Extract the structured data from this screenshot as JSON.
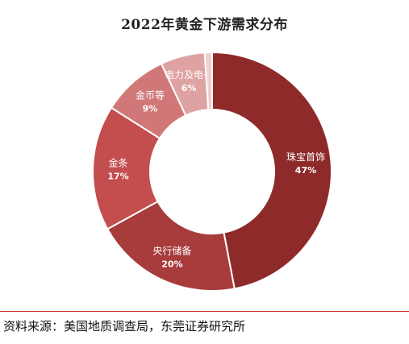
{
  "title": "2022年黄金下游需求分布",
  "source_note": "资料来源：美国地质调查局，东莞证券研究所",
  "chart_data": {
    "type": "donut",
    "title": "2022年黄金下游需求分布",
    "slices": [
      {
        "label": "珠宝首饰",
        "value": 47,
        "value_text": "47%",
        "color": "#8e2a2a"
      },
      {
        "label": "央行储备",
        "value": 20,
        "value_text": "20%",
        "color": "#a83b3b"
      },
      {
        "label": "金条",
        "value": 17,
        "value_text": "17%",
        "color": "#c44e4e"
      },
      {
        "label": "金币等",
        "value": 9,
        "value_text": "9%",
        "color": "#d07878"
      },
      {
        "label": "电力及电子",
        "value": 6,
        "value_text": "6%",
        "color": "#dfa2a2"
      },
      {
        "label": "",
        "value": 1,
        "value_text": "",
        "color": "#efd0d0"
      }
    ]
  }
}
